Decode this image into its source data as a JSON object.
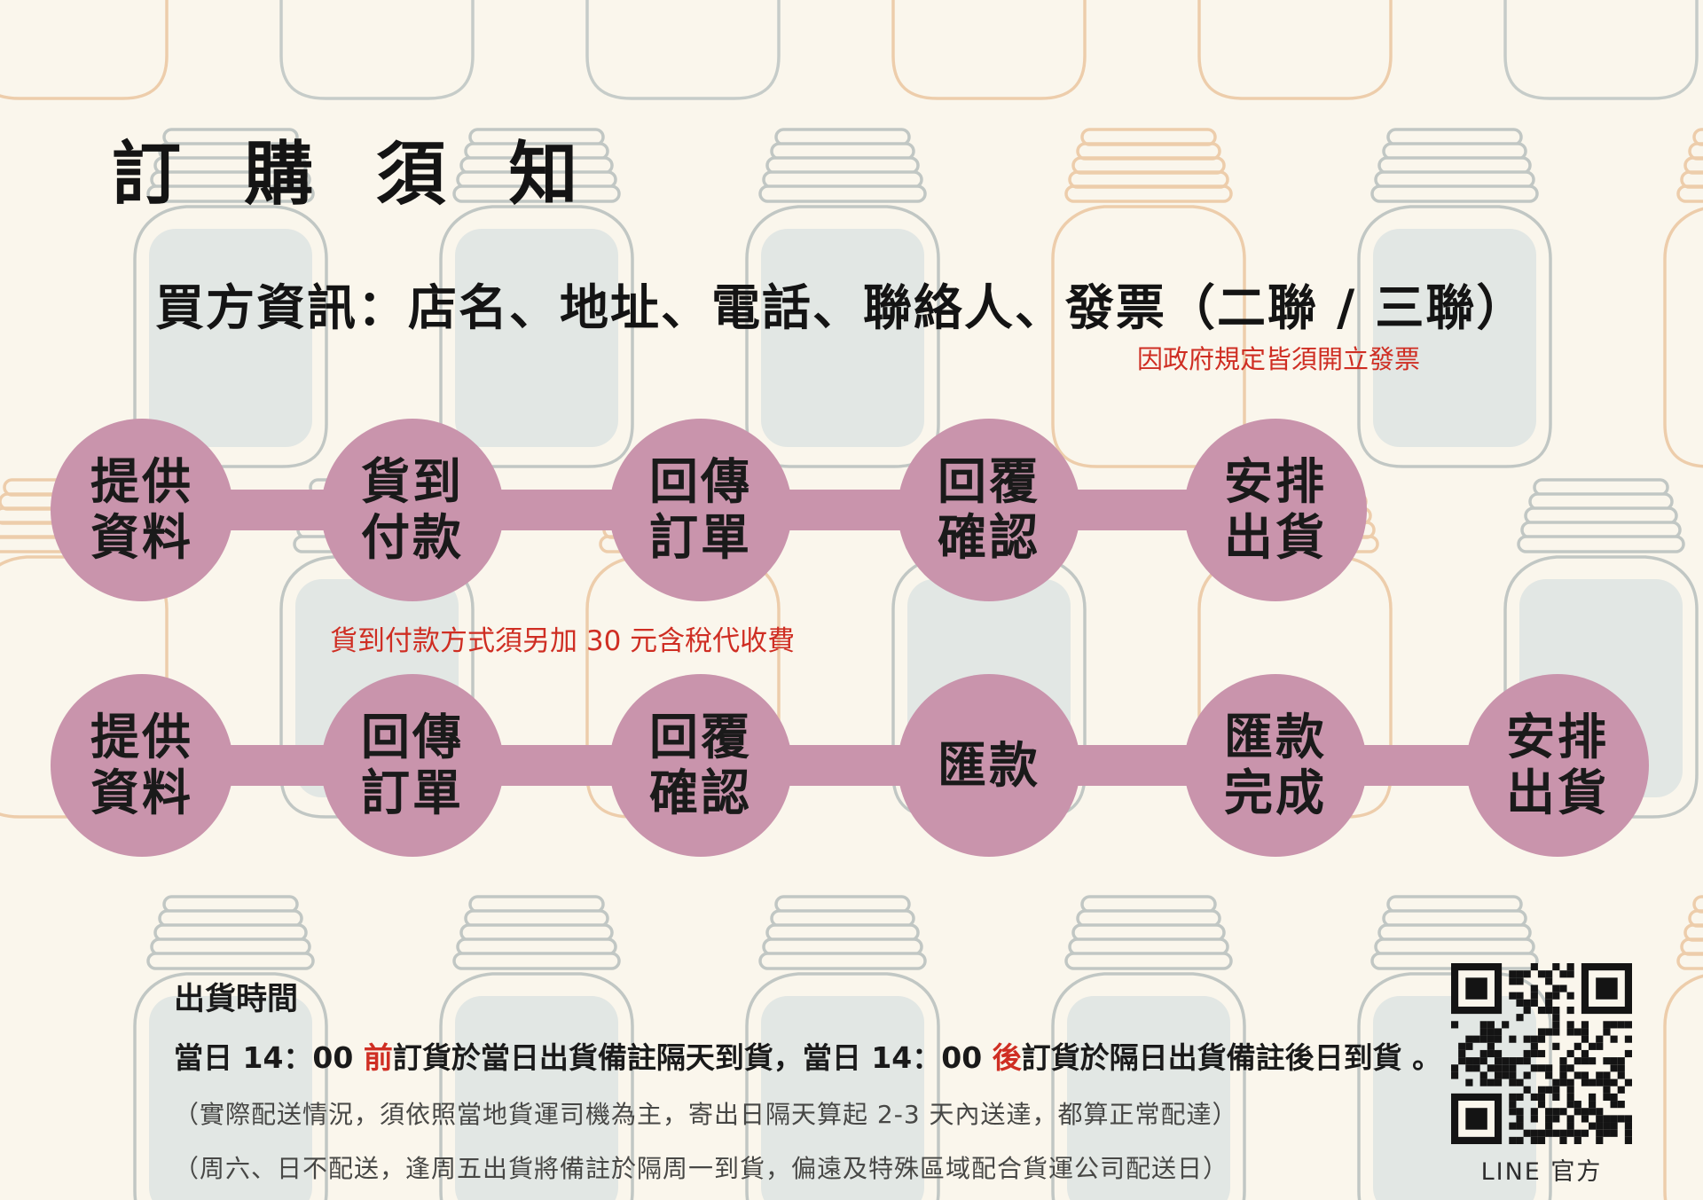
{
  "page": {
    "title": "訂 購 須 知"
  },
  "buyer_info": {
    "text": "買方資訊：店名、地址、電話、聯絡人、發票（二聯 /  三聯）",
    "invoice_note": "因政府規定皆須開立發票"
  },
  "flows": {
    "cod": {
      "steps": [
        [
          "提供",
          "資料"
        ],
        [
          "貨到",
          "付款"
        ],
        [
          "回傳",
          "訂單"
        ],
        [
          "回覆",
          "確認"
        ],
        [
          "安排",
          "出貨"
        ]
      ],
      "note": "貨到付款方式須另加 30 元含稅代收費"
    },
    "transfer": {
      "steps": [
        [
          "提供",
          "資料"
        ],
        [
          "回傳",
          "訂單"
        ],
        [
          "回覆",
          "確認"
        ],
        [
          "匯款"
        ],
        [
          "匯款",
          "完成"
        ],
        [
          "安排",
          "出貨"
        ]
      ]
    }
  },
  "shipping": {
    "heading": "出貨時間",
    "line1_segments": [
      {
        "text": "當日 14：00 ",
        "red": false
      },
      {
        "text": "前",
        "red": true
      },
      {
        "text": "訂貨於當日出貨備註隔天到貨，當日 14：00 ",
        "red": false
      },
      {
        "text": "後",
        "red": true
      },
      {
        "text": "訂貨於隔日出貨備註後日到貨 。",
        "red": false
      }
    ],
    "line2": "（實際配送情況，須依照當地貨運司機為主，寄出日隔天算起 2-3 天內送達，都算正常配達）",
    "line3": "（周六、日不配送，逢周五出貨將備註於隔周一到貨，偏遠及特殊區域配合貨運公司配送日）"
  },
  "qr": {
    "label": "LINE 官方"
  },
  "colors": {
    "background": "#faf6ec",
    "circle_pink": "#c994ac",
    "alert_red": "#cf2e23",
    "text_black": "#1b1b1b",
    "jar_gray_stroke": "#c1c7c4",
    "jar_glass_fill": "#e2e7e4",
    "jar_peach_stroke": "#edcdab"
  }
}
